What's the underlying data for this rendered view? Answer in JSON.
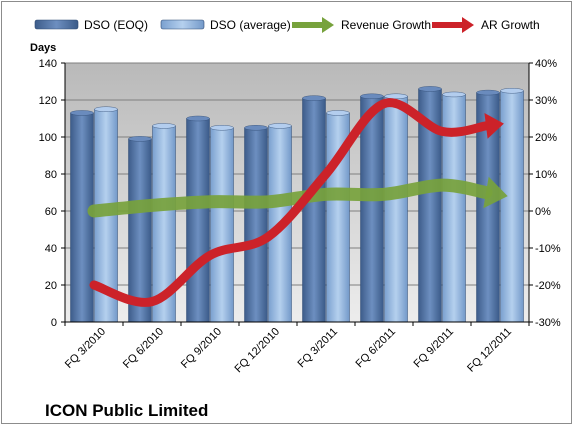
{
  "chart_data": {
    "type": "bar",
    "categories": [
      "FQ 3/2010",
      "FQ 6/2010",
      "FQ 9/2010",
      "FQ 12/2010",
      "FQ 3/2011",
      "FQ 6/2011",
      "FQ 9/2011",
      "FQ 12/2011"
    ],
    "ylabel": "Days",
    "ylim": [
      0,
      140
    ],
    "yticks": [
      0,
      20,
      40,
      60,
      80,
      100,
      120,
      140
    ],
    "y2lim": [
      -30,
      40
    ],
    "y2ticks": [
      -30,
      -20,
      -10,
      0,
      10,
      20,
      30,
      40
    ],
    "y2tick_labels": [
      "-30%",
      "-20%",
      "-10%",
      "0%",
      "10%",
      "20%",
      "30%",
      "40%"
    ],
    "caption": "ICON Public Limited",
    "legend_position": "top",
    "bar_series": [
      {
        "name": "DSO (EOQ)",
        "axis": "left",
        "color": "#4f6f9e",
        "values": [
          113,
          99,
          110,
          105,
          121,
          122,
          126,
          124
        ]
      },
      {
        "name": "DSO (average)",
        "axis": "left",
        "color": "#8fb4de",
        "values": [
          115,
          106,
          105,
          106,
          113,
          122,
          123,
          125
        ]
      }
    ],
    "line_series": [
      {
        "name": "Revenue Growth",
        "axis": "right",
        "color": "#77a23c",
        "values": [
          0,
          1.5,
          2.5,
          2.5,
          4.5,
          4.5,
          7,
          5
        ]
      },
      {
        "name": "AR Growth",
        "axis": "right",
        "color": "#cc2229",
        "values": [
          -20,
          -24.5,
          -12,
          -7,
          10,
          29,
          21.5,
          23
        ]
      }
    ]
  }
}
